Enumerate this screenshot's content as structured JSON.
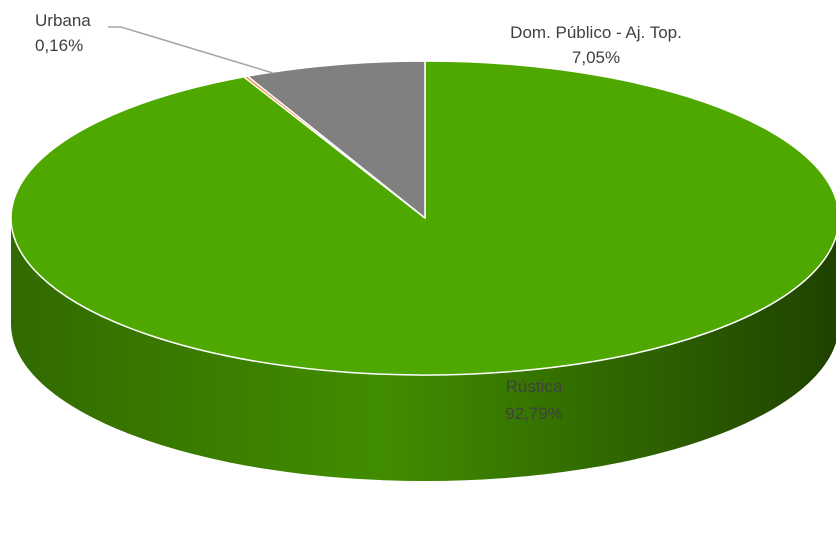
{
  "chart_data": {
    "type": "pie",
    "style": "3d",
    "start_angle_deg": 0,
    "direction": "clockwise",
    "slices": [
      {
        "label": "Rústica",
        "value": 92.79,
        "value_label": "92,79%",
        "color": "#4ea800"
      },
      {
        "label": "Urbana",
        "value": 0.16,
        "value_label": "0,16%",
        "color": "#ed7d31"
      },
      {
        "label": "Dom. Público - Aj. Top.",
        "value": 7.05,
        "value_label": "7,05%",
        "color": "#808080"
      }
    ],
    "legend": "none"
  }
}
